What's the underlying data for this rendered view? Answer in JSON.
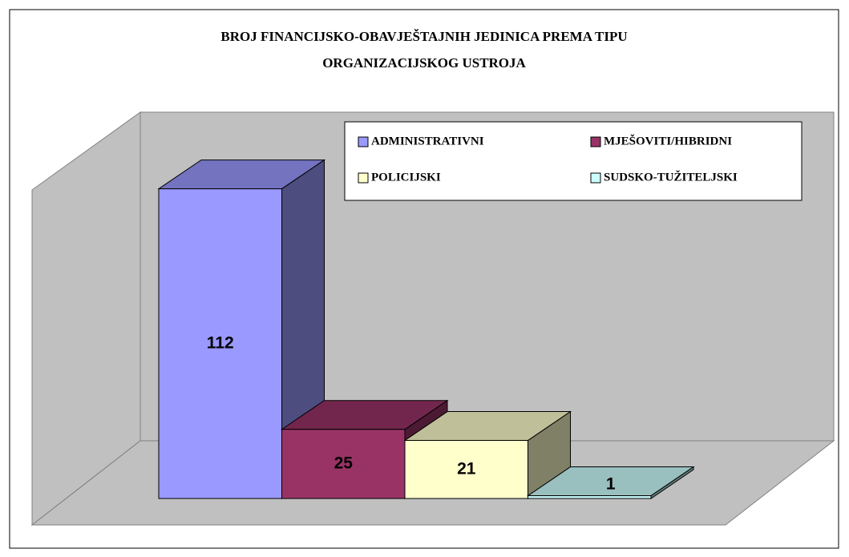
{
  "chart_data": {
    "type": "bar3d",
    "title": [
      "BROJ FINANCIJSKO-OBAVJEŠTAJNIH JEDINICA PREMA TIPU",
      "ORGANIZACIJSKOG USTROJA"
    ],
    "ylim": [
      0,
      120
    ],
    "series": [
      {
        "name": "ADMINISTRATIVNI",
        "color": "#9999ff",
        "values": [
          112
        ]
      },
      {
        "name": "MJEŠOVITI/HIBRIDNI",
        "color": "#993366",
        "values": [
          25
        ]
      },
      {
        "name": "POLICIJSKI",
        "color": "#ffffcc",
        "values": [
          21
        ]
      },
      {
        "name": "SUDSKO-TUŽITELJSKI",
        "color": "#ccffff",
        "values": [
          1
        ]
      }
    ]
  }
}
